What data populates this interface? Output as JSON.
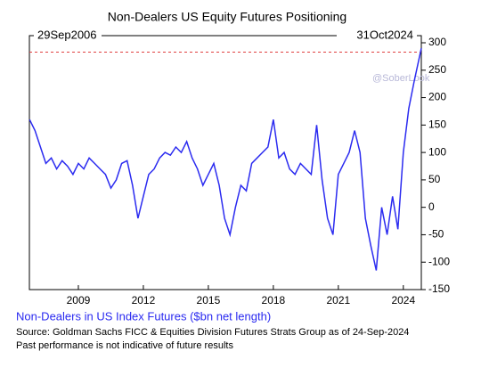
{
  "chart_data": {
    "type": "line",
    "title": "Non-Dealers US Equity Futures Positioning",
    "start_label": "29Sep2006",
    "end_label": "31Oct2024",
    "watermark": "@SoberLook",
    "source": "Source: Goldman Sachs FICC & Equities Division Futures Strats Group as of 24-Sep-2024",
    "note": "Past performance is not indicative of future results",
    "x": [
      2006.75,
      2007.0,
      2007.25,
      2007.5,
      2007.75,
      2008.0,
      2008.25,
      2008.5,
      2008.75,
      2009.0,
      2009.25,
      2009.5,
      2009.75,
      2010.0,
      2010.25,
      2010.5,
      2010.75,
      2011.0,
      2011.25,
      2011.5,
      2011.75,
      2012.0,
      2012.25,
      2012.5,
      2012.75,
      2013.0,
      2013.25,
      2013.5,
      2013.75,
      2014.0,
      2014.25,
      2014.5,
      2014.75,
      2015.0,
      2015.25,
      2015.5,
      2015.75,
      2016.0,
      2016.25,
      2016.5,
      2016.75,
      2017.0,
      2017.25,
      2017.5,
      2017.75,
      2018.0,
      2018.25,
      2018.5,
      2018.75,
      2019.0,
      2019.25,
      2019.5,
      2019.75,
      2020.0,
      2020.25,
      2020.5,
      2020.75,
      2021.0,
      2021.25,
      2021.5,
      2021.75,
      2022.0,
      2022.25,
      2022.5,
      2022.75,
      2023.0,
      2023.25,
      2023.5,
      2023.75,
      2024.0,
      2024.25,
      2024.5,
      2024.83
    ],
    "series": [
      {
        "name": "Non-Dealers in US Index Futures ($bn net length)",
        "color": "#2b2bf0",
        "values": [
          160,
          140,
          110,
          80,
          90,
          70,
          85,
          75,
          60,
          80,
          70,
          90,
          80,
          70,
          60,
          35,
          50,
          80,
          85,
          40,
          -20,
          20,
          60,
          70,
          90,
          100,
          95,
          110,
          100,
          120,
          90,
          70,
          40,
          60,
          80,
          40,
          -20,
          -50,
          0,
          40,
          30,
          80,
          90,
          100,
          110,
          160,
          90,
          100,
          70,
          60,
          80,
          70,
          60,
          150,
          50,
          -20,
          -50,
          60,
          80,
          100,
          140,
          100,
          -20,
          -70,
          -115,
          0,
          -50,
          20,
          -40,
          100,
          180,
          230,
          290
        ]
      }
    ],
    "xlim": [
      2006.74,
      2024.83
    ],
    "xticks": [
      2009,
      2012,
      2015,
      2018,
      2021,
      2024
    ],
    "ylim": [
      -150,
      313
    ],
    "yticks": [
      -150,
      -100,
      -50,
      0,
      50,
      100,
      150,
      200,
      250,
      300
    ],
    "reference_line": {
      "value": 283,
      "color": "#e04040"
    }
  }
}
